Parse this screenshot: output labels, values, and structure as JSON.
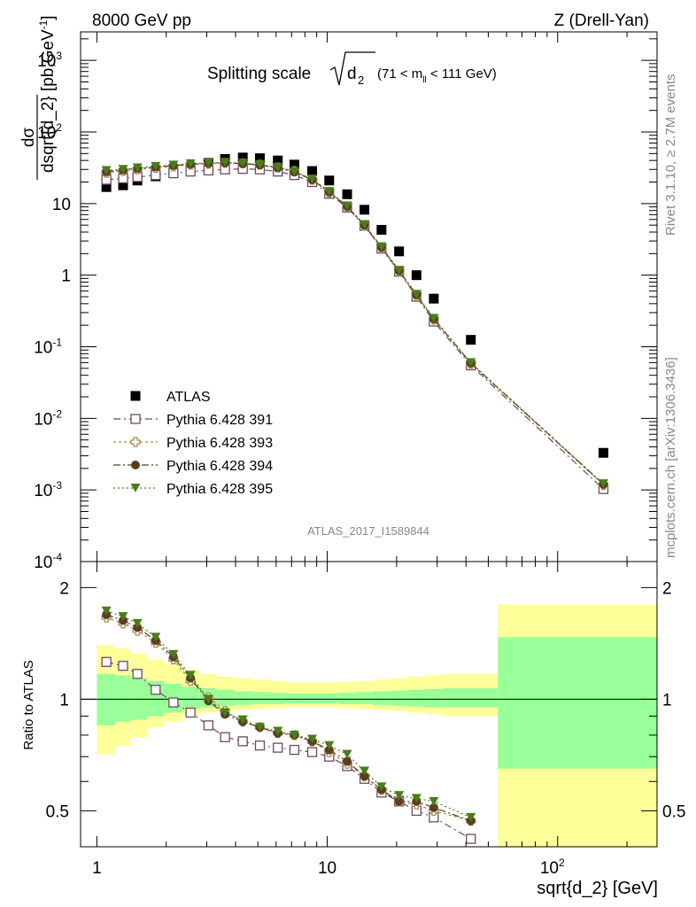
{
  "header": {
    "left": "8000 GeV pp",
    "right": "Z (Drell-Yan)"
  },
  "side_labels": {
    "rivet": "Rivet 3.1.10, ≥ 2.7M events",
    "mcplots": "mcplots.cern.ch [arXiv:1306.3436]"
  },
  "watermark": "ATLAS_2017_I1589844",
  "colors": {
    "data": "#000000",
    "p391": "#6e4a5e",
    "p393": "#a08a4a",
    "p394": "#5a3e22",
    "p395": "#4a7d1c",
    "band_inner": "#99ff99",
    "band_outer": "#ffff99"
  },
  "chart_data": [
    {
      "type": "scatter",
      "title": "Splitting scale",
      "title_math": "√d₂",
      "title_range": "(71 < m",
      "title_range_sub": "ll",
      "title_range_end": " < 111 GeV)",
      "xlabel": "sqrt{d_2} [GeV]",
      "ylabel": "dσ / dsqrt{d_2} [pb,GeV⁻¹]",
      "ylabel_num": "dσ",
      "ylabel_den": "dsqrt{d_2} [pb,GeV",
      "ylabel_den_sup": "-1",
      "ylabel_den_end": "]",
      "x_scale": "log",
      "y_scale": "log",
      "xlim": [
        0.85,
        270
      ],
      "ylim": [
        0.0001,
        2500
      ],
      "y_ticks": [
        {
          "v": 1000,
          "label": "10",
          "sup": "3"
        },
        {
          "v": 100,
          "label": "10",
          "sup": "2"
        },
        {
          "v": 10,
          "label": "10",
          "sup": ""
        },
        {
          "v": 1,
          "label": "1",
          "sup": ""
        },
        {
          "v": 0.1,
          "label": "10",
          "sup": "-1"
        },
        {
          "v": 0.01,
          "label": "10",
          "sup": "-2"
        },
        {
          "v": 0.001,
          "label": "10",
          "sup": "-3"
        },
        {
          "v": 0.0001,
          "label": "10",
          "sup": "-4"
        }
      ],
      "legend_position": "bottom-left",
      "x": [
        1.1,
        1.3,
        1.5,
        1.8,
        2.15,
        2.55,
        3.05,
        3.6,
        4.3,
        5.1,
        6.1,
        7.2,
        8.6,
        10.2,
        12.2,
        14.5,
        17.2,
        20.5,
        24.4,
        29.0,
        42.0,
        158.0
      ],
      "series": [
        {
          "name": "ATLAS",
          "key": "data",
          "marker": "filled-square",
          "values": [
            17,
            18,
            21,
            24,
            28,
            32,
            37,
            42,
            44,
            43,
            40,
            35,
            28.5,
            21,
            13.5,
            8.2,
            4.3,
            2.15,
            1.0,
            0.47,
            0.125,
            0.0033
          ]
        },
        {
          "name": "Pythia 6.428 391",
          "key": "p391",
          "marker": "open-square",
          "values": [
            21.5,
            22.5,
            23.5,
            25,
            26.5,
            28,
            29,
            30,
            30.5,
            30,
            28,
            25,
            20,
            13.7,
            8.8,
            4.9,
            2.35,
            1.12,
            0.5,
            0.225,
            0.055,
            0.00103
          ]
        },
        {
          "name": "Pythia 6.428 393",
          "key": "p393",
          "marker": "open-cross",
          "values": [
            27,
            28.5,
            30,
            31.5,
            33,
            35,
            36,
            37,
            36.5,
            35,
            32,
            28.5,
            21.5,
            14.3,
            9.0,
            4.9,
            2.4,
            1.13,
            0.51,
            0.24,
            0.058,
            0.00118
          ]
        },
        {
          "name": "Pythia 6.428 394",
          "key": "p394",
          "marker": "filled-circle",
          "values": [
            28,
            29.5,
            31,
            32.5,
            34,
            35.5,
            36.5,
            37,
            36,
            34.5,
            31.5,
            27.5,
            21.5,
            14.5,
            9.1,
            5.0,
            2.45,
            1.15,
            0.53,
            0.245,
            0.059,
            0.0012
          ]
        },
        {
          "name": "Pythia 6.428 395",
          "key": "p395",
          "marker": "filled-triangle-down",
          "values": [
            29,
            30,
            31.5,
            33,
            34.5,
            36,
            37,
            37.5,
            36.5,
            35,
            32,
            28,
            22,
            14.8,
            9.3,
            5.1,
            2.5,
            1.17,
            0.54,
            0.25,
            0.06,
            0.00122
          ]
        }
      ]
    },
    {
      "type": "scatter",
      "ylabel": "Ratio to ATLAS",
      "xlabel": "sqrt{d_2} [GeV]",
      "x_scale": "log",
      "y_scale": "log",
      "xlim": [
        0.85,
        270
      ],
      "ylim": [
        0.4,
        2.35
      ],
      "y_ticks": [
        0.5,
        1,
        2
      ],
      "x_ticks": [
        {
          "v": 1,
          "label": "1",
          "sup": ""
        },
        {
          "v": 10,
          "label": "10",
          "sup": ""
        },
        {
          "v": 100,
          "label": "10",
          "sup": "2"
        }
      ],
      "reference_line": 1,
      "band_edges": [
        1.0,
        1.2,
        1.4,
        1.65,
        1.95,
        2.35,
        2.8,
        3.3,
        3.95,
        4.7,
        5.6,
        6.6,
        7.9,
        9.4,
        11.2,
        13.3,
        15.8,
        18.8,
        22.4,
        26.6,
        31.6,
        55.0,
        270.0
      ],
      "band_outer": [
        [
          0.71,
          1.4
        ],
        [
          0.75,
          1.37
        ],
        [
          0.79,
          1.33
        ],
        [
          0.84,
          1.28
        ],
        [
          0.87,
          1.24
        ],
        [
          0.9,
          1.2
        ],
        [
          0.92,
          1.17
        ],
        [
          0.93,
          1.15
        ],
        [
          0.935,
          1.14
        ],
        [
          0.94,
          1.13
        ],
        [
          0.945,
          1.12
        ],
        [
          0.95,
          1.11
        ],
        [
          0.95,
          1.11
        ],
        [
          0.95,
          1.11
        ],
        [
          0.945,
          1.115
        ],
        [
          0.94,
          1.12
        ],
        [
          0.935,
          1.13
        ],
        [
          0.93,
          1.14
        ],
        [
          0.92,
          1.15
        ],
        [
          0.91,
          1.16
        ],
        [
          0.9,
          1.17
        ],
        [
          0.28,
          1.8
        ]
      ],
      "band_inner": [
        [
          0.85,
          1.17
        ],
        [
          0.87,
          1.16
        ],
        [
          0.88,
          1.14
        ],
        [
          0.9,
          1.12
        ],
        [
          0.92,
          1.1
        ],
        [
          0.94,
          1.08
        ],
        [
          0.95,
          1.07
        ],
        [
          0.96,
          1.06
        ],
        [
          0.965,
          1.05
        ],
        [
          0.97,
          1.045
        ],
        [
          0.97,
          1.04
        ],
        [
          0.975,
          1.035
        ],
        [
          0.975,
          1.035
        ],
        [
          0.975,
          1.035
        ],
        [
          0.97,
          1.04
        ],
        [
          0.97,
          1.045
        ],
        [
          0.965,
          1.05
        ],
        [
          0.96,
          1.055
        ],
        [
          0.955,
          1.06
        ],
        [
          0.95,
          1.065
        ],
        [
          0.95,
          1.07
        ],
        [
          0.65,
          1.47
        ]
      ],
      "x": [
        1.1,
        1.3,
        1.5,
        1.8,
        2.15,
        2.55,
        3.05,
        3.6,
        4.3,
        5.1,
        6.1,
        7.2,
        8.6,
        10.2,
        12.2,
        14.5,
        17.2,
        20.5,
        24.4,
        29.0,
        42.0
      ],
      "series": [
        {
          "name": "Pythia 6.428 391",
          "key": "p391",
          "marker": "open-square",
          "values": [
            1.26,
            1.23,
            1.17,
            1.06,
            0.98,
            0.92,
            0.85,
            0.79,
            0.77,
            0.75,
            0.74,
            0.73,
            0.72,
            0.7,
            0.66,
            0.61,
            0.56,
            0.53,
            0.5,
            0.48,
            0.42
          ]
        },
        {
          "name": "Pythia 6.428 393",
          "key": "p393",
          "marker": "open-cross",
          "values": [
            1.66,
            1.6,
            1.53,
            1.42,
            1.28,
            1.12,
            1.01,
            0.93,
            0.87,
            0.84,
            0.81,
            0.8,
            0.77,
            0.72,
            0.67,
            0.62,
            0.57,
            0.53,
            0.52,
            0.5,
            0.47
          ]
        },
        {
          "name": "Pythia 6.428 394",
          "key": "p394",
          "marker": "filled-circle",
          "values": [
            1.69,
            1.63,
            1.56,
            1.44,
            1.3,
            1.14,
            0.99,
            0.91,
            0.87,
            0.84,
            0.81,
            0.8,
            0.77,
            0.73,
            0.68,
            0.62,
            0.57,
            0.53,
            0.53,
            0.51,
            0.47
          ]
        },
        {
          "name": "Pythia 6.428 395",
          "key": "p395",
          "marker": "filled-triangle-down",
          "values": [
            1.73,
            1.67,
            1.6,
            1.47,
            1.32,
            1.16,
            1.0,
            0.92,
            0.88,
            0.84,
            0.82,
            0.8,
            0.78,
            0.75,
            0.71,
            0.64,
            0.58,
            0.55,
            0.54,
            0.53,
            0.48
          ]
        }
      ]
    }
  ]
}
